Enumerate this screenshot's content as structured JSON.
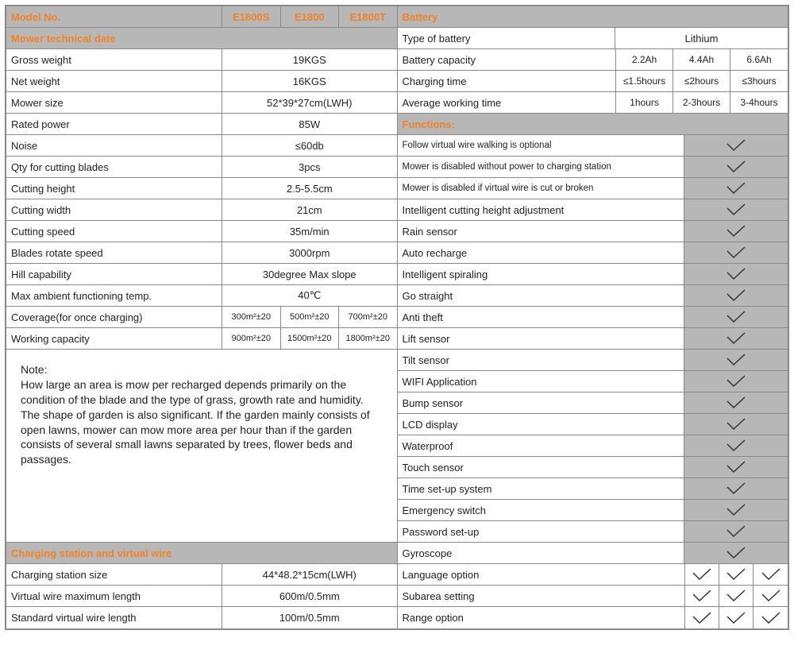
{
  "table": {
    "border_color": "#888888",
    "header_bg": "#b7b7b7",
    "accent_color": "#f58220",
    "text_color": "#222222",
    "font_family": "Arial, sans-serif",
    "base_font_size": 13
  },
  "left": {
    "model_no_label": "Model No.",
    "models": [
      "E1800S",
      "E1800",
      "E1800T"
    ],
    "section_mower": "Mower technical date",
    "rows_single": [
      {
        "label": "Gross weight",
        "value": "19KGS"
      },
      {
        "label": "Net weight",
        "value": "16KGS"
      },
      {
        "label": "Mower size",
        "value": "52*39*27cm(LWH)"
      },
      {
        "label": "Rated power",
        "value": "85W"
      },
      {
        "label": "Noise",
        "value": "≤60db"
      },
      {
        "label": "Qty for cutting blades",
        "value": "3pcs"
      },
      {
        "label": "Cutting height",
        "value": "2.5-5.5cm"
      },
      {
        "label": "Cutting width",
        "value": "21cm"
      },
      {
        "label": "Cutting speed",
        "value": "35m/min"
      },
      {
        "label": "Blades rotate speed",
        "value": "3000rpm"
      },
      {
        "label": "Hill capability",
        "value": "30degree Max slope"
      },
      {
        "label": "Max ambient functioning temp.",
        "value": "40℃"
      }
    ],
    "rows_triple": [
      {
        "label": "Coverage(for once charging)",
        "values": [
          "300m²±20",
          "500m²±20",
          "700m²±20"
        ]
      },
      {
        "label": "Working capacity",
        "values": [
          "900m²±20",
          "1500m²±20",
          "1800m²±20"
        ]
      }
    ],
    "note_title": "Note:",
    "note_body": "How large an area is mow per recharged depends primarily on the condition of the blade and the type of grass, growth rate and humidity. The shape of garden is also significant. If the garden mainly consists of open lawns, mower can mow more area per hour than if the garden consists of several small lawns separated by trees, flower beds and passages.",
    "section_charging": "Charging station and virtual wire",
    "charging_rows": [
      {
        "label": "Charging station size",
        "value": "44*48.2*15cm(LWH)"
      },
      {
        "label": "Virtual wire maximum length",
        "value": "600m/0.5mm"
      },
      {
        "label": "Standard virtual wire length",
        "value": "100m/0.5mm"
      }
    ]
  },
  "right": {
    "section_battery": "Battery",
    "battery_rows": [
      {
        "label": "Type of battery",
        "span": true,
        "value": "Lithium"
      },
      {
        "label": "Battery capacity",
        "values": [
          "2.2Ah",
          "4.4Ah",
          "6.6Ah"
        ]
      },
      {
        "label": "Charging time",
        "values": [
          "≤1.5hours",
          "≤2hours",
          "≤3hours"
        ]
      },
      {
        "label": "Average working time",
        "values": [
          "1hours",
          "2-3hours",
          "3-4hours"
        ]
      }
    ],
    "section_functions": "Functions:",
    "functions": [
      {
        "label": "Follow virtual wire walking is optional",
        "mode": "single",
        "small": true
      },
      {
        "label": "Mower is disabled without power to charging station",
        "mode": "single",
        "small": true
      },
      {
        "label": "Mower is disabled if virtual wire is cut or broken",
        "mode": "single",
        "small": true
      },
      {
        "label": "Intelligent cutting height adjustment",
        "mode": "single"
      },
      {
        "label": "Rain sensor",
        "mode": "single"
      },
      {
        "label": "Auto recharge",
        "mode": "single"
      },
      {
        "label": "Intelligent spiraling",
        "mode": "single"
      },
      {
        "label": "Go straight",
        "mode": "single"
      },
      {
        "label": "Anti theft",
        "mode": "single"
      },
      {
        "label": "Lift sensor",
        "mode": "single"
      },
      {
        "label": "Tilt sensor",
        "mode": "single"
      },
      {
        "label": "WIFI Application",
        "mode": "single"
      },
      {
        "label": "Bump sensor",
        "mode": "single"
      },
      {
        "label": "LCD display",
        "mode": "single"
      },
      {
        "label": "Waterproof",
        "mode": "single"
      },
      {
        "label": "Touch sensor",
        "mode": "single"
      },
      {
        "label": "Time set-up system",
        "mode": "single"
      },
      {
        "label": "Emergency switch",
        "mode": "single"
      },
      {
        "label": "Password set-up",
        "mode": "single"
      },
      {
        "label": "Gyroscope",
        "mode": "single"
      },
      {
        "label": "Language option",
        "mode": "triple"
      },
      {
        "label": "Subarea setting",
        "mode": "triple"
      },
      {
        "label": "Range option",
        "mode": "triple"
      }
    ]
  },
  "checkmark": {
    "stroke": "#333333",
    "stroke_width": 1.5
  }
}
